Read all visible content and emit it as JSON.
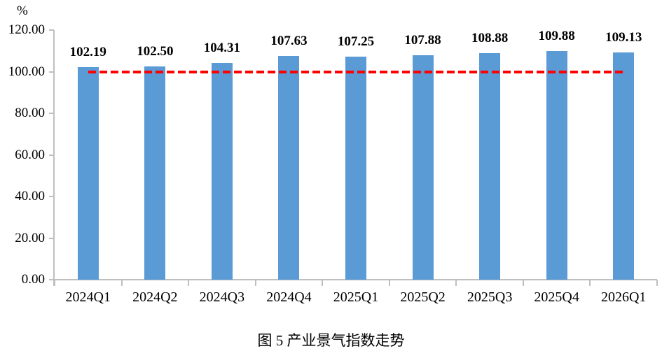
{
  "chart_data": {
    "type": "bar",
    "title": "图 5  产业景气指数走势",
    "unit_label": "%",
    "categories": [
      "2024Q1",
      "2024Q2",
      "2024Q3",
      "2024Q4",
      "2025Q1",
      "2025Q2",
      "2025Q3",
      "2025Q4",
      "2026Q1"
    ],
    "values": [
      102.19,
      102.5,
      104.31,
      107.63,
      107.25,
      107.88,
      108.88,
      109.88,
      109.13
    ],
    "value_labels": [
      "102.19",
      "102.50",
      "104.31",
      "107.63",
      "107.25",
      "107.88",
      "108.88",
      "109.88",
      "109.13"
    ],
    "y_axis": {
      "min": 0,
      "max": 120,
      "tick_step": 20,
      "ticks": [
        {
          "value": 0,
          "label": "0.00"
        },
        {
          "value": 20,
          "label": "20.00"
        },
        {
          "value": 40,
          "label": "40.00"
        },
        {
          "value": 60,
          "label": "60.00"
        },
        {
          "value": 80,
          "label": "80.00"
        },
        {
          "value": 100,
          "label": "100.00"
        },
        {
          "value": 120,
          "label": "120.00"
        }
      ]
    },
    "reference_line": {
      "value": 100,
      "color": "#FF0000",
      "style": "dashed"
    },
    "colors": {
      "bar": "#5B9BD5",
      "axis": "#BFBFBF",
      "text": "#000000"
    },
    "legend": "none",
    "grid": false,
    "xlabel": "",
    "ylabel": "%"
  }
}
